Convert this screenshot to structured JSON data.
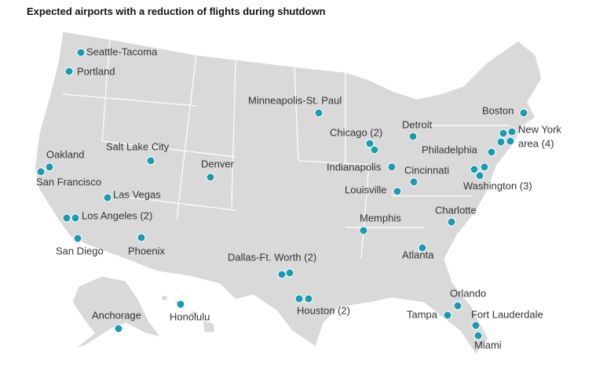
{
  "title": "Expected airports with a reduction of flights during shutdown",
  "airports": [
    {
      "label": "Seattle-Tacoma"
    },
    {
      "label": "Portland"
    },
    {
      "label": "Minneapolis-St. Paul"
    },
    {
      "label": "Boston"
    },
    {
      "label": [
        "New York",
        "area (4)"
      ]
    },
    {
      "label": "Detroit"
    },
    {
      "label": "Chicago (2)"
    },
    {
      "label": "Salt Lake City"
    },
    {
      "label": "Oakland"
    },
    {
      "label": "San Francisco"
    },
    {
      "label": "Denver"
    },
    {
      "label": "Philadelphia"
    },
    {
      "label": "Indianapolis"
    },
    {
      "label": "Cincinnati"
    },
    {
      "label": "Washington (3)"
    },
    {
      "label": "Louisville"
    },
    {
      "label": "Las Vegas"
    },
    {
      "label": "Los Angeles (2)"
    },
    {
      "label": "Charlotte"
    },
    {
      "label": "Memphis"
    },
    {
      "label": "San Diego"
    },
    {
      "label": "Phoenix"
    },
    {
      "label": "Atlanta"
    },
    {
      "label": "Dallas-Ft. Worth (2)"
    },
    {
      "label": "Houston (2)"
    },
    {
      "label": "Orlando"
    },
    {
      "label": "Tampa"
    },
    {
      "label": "Fort Lauderdale"
    },
    {
      "label": "Miami"
    },
    {
      "label": "Anchorage"
    },
    {
      "label": "Honolulu"
    }
  ]
}
